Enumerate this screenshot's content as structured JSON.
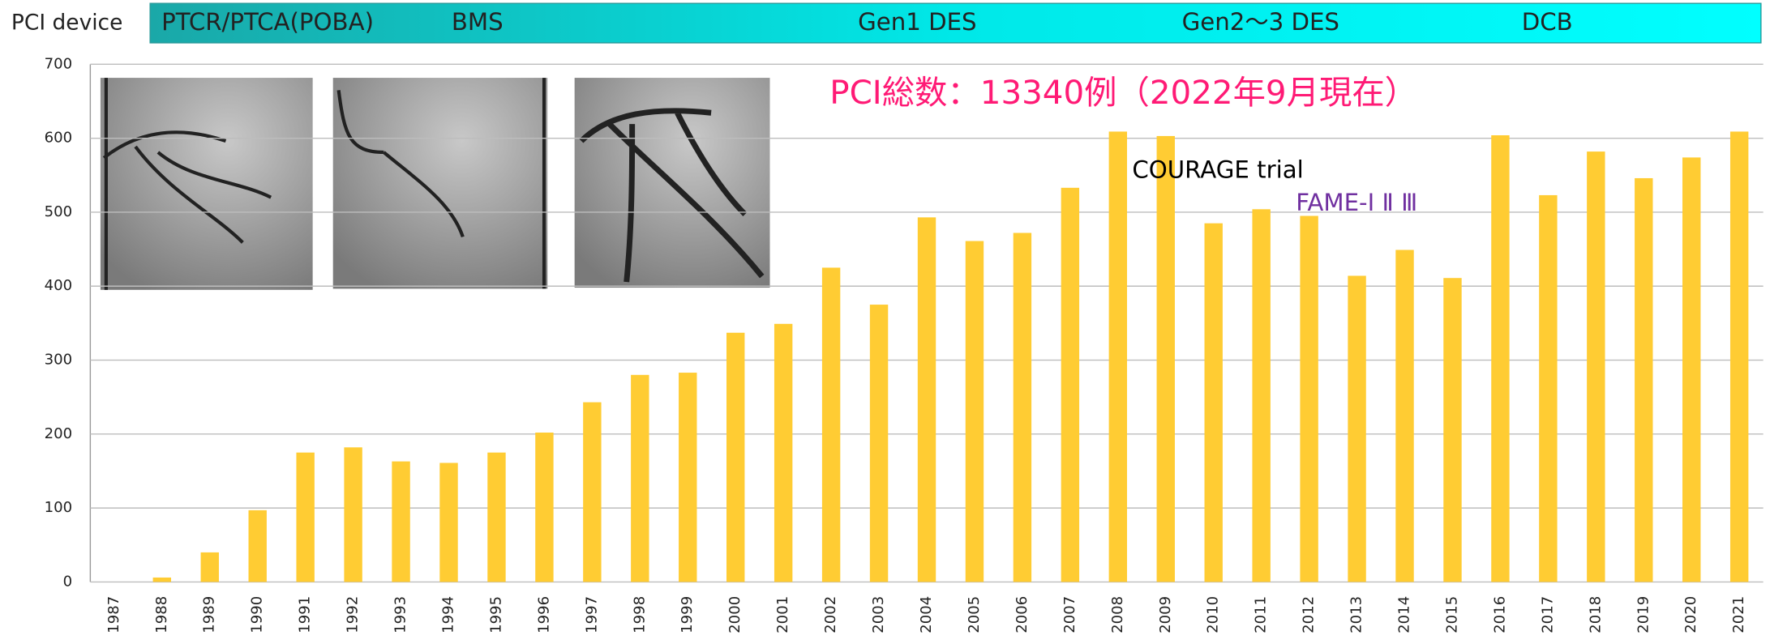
{
  "header": {
    "label": "PCI device",
    "eras": [
      "PTCR/PTCA(POBA)",
      "BMS",
      "Gen1 DES",
      "Gen2～3 DES",
      "DCB"
    ]
  },
  "chart_data": {
    "type": "bar",
    "categories": [
      "1987",
      "1988",
      "1989",
      "1990",
      "1991",
      "1992",
      "1993",
      "1994",
      "1995",
      "1996",
      "1997",
      "1998",
      "1999",
      "2000",
      "2001",
      "2002",
      "2003",
      "2004",
      "2005",
      "2006",
      "2007",
      "2008",
      "2009",
      "2010",
      "2011",
      "2012",
      "2013",
      "2014",
      "2015",
      "2016",
      "2017",
      "2018",
      "2019",
      "2020",
      "2021"
    ],
    "values": [
      0,
      6,
      40,
      97,
      175,
      182,
      163,
      161,
      175,
      202,
      243,
      280,
      283,
      337,
      349,
      425,
      375,
      493,
      461,
      472,
      533,
      609,
      603,
      485,
      504,
      495,
      414,
      449,
      411,
      604,
      523,
      582,
      546,
      574,
      609
    ],
    "color": "#ffcc33",
    "ylim": [
      0,
      700
    ],
    "yticks": [
      0,
      100,
      200,
      300,
      400,
      500,
      600,
      700
    ],
    "grid": true,
    "annotations": [
      "PCI総数：13340例（2022年9月現在）",
      "COURAGE trial",
      "FAME-Ⅰ Ⅱ Ⅲ"
    ]
  }
}
